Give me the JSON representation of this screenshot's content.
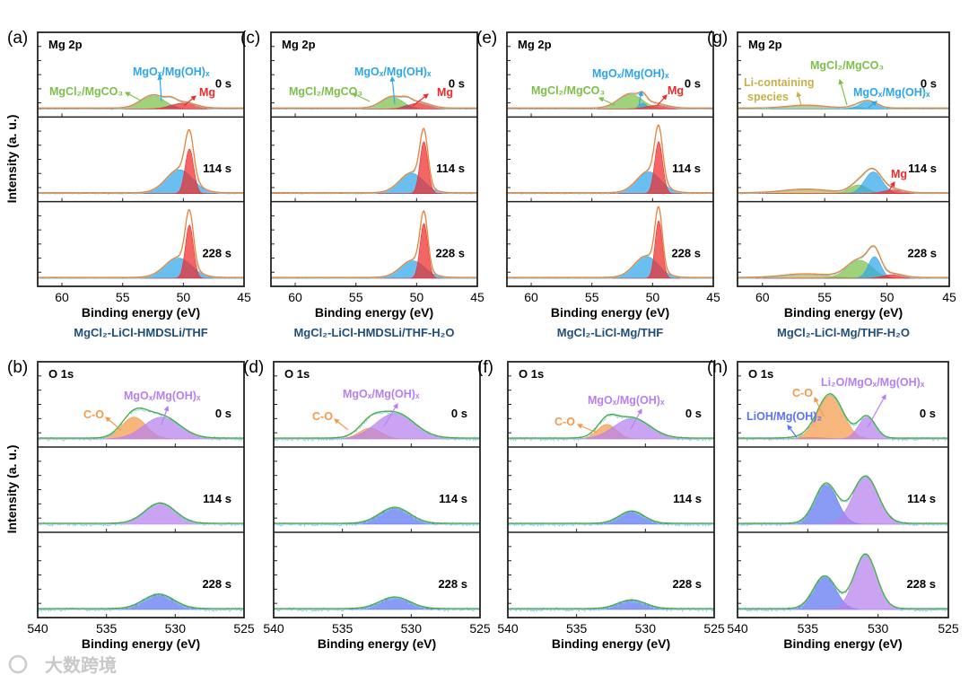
{
  "y_axis_label": "Intensity (a. u.)",
  "watermark": "大数跨境",
  "colors": {
    "green": "#7cc04a",
    "blue": "#2ea6ea",
    "red": "#ee2b2b",
    "olive": "#c8b04a",
    "orange": "#f39a4a",
    "purple": "#b681ef",
    "indigo": "#5c74f0",
    "mg_envelope": "#e8843a",
    "o_envelope": "#4caa3c",
    "raw": "#7fd3e8",
    "title": "#1f4e79"
  },
  "chart_data": [
    {
      "id": "a",
      "type": "area",
      "panel_label": "(a)",
      "region": "Mg 2p",
      "title": "MgCl₂-LiCl-HMDSLi/THF",
      "xlabel": "Binding energy (eV)",
      "xlim": [
        62,
        45
      ],
      "xticks": [
        60,
        55,
        50,
        45
      ],
      "envelope_color": "mg_envelope",
      "annotations": [
        {
          "text": "MgCl₂/MgCO₃",
          "color": "green"
        },
        {
          "text": "MgOₓ/Mg(OH)ₓ",
          "color": "blue"
        },
        {
          "text": "Mg",
          "color": "red"
        }
      ],
      "series": [
        {
          "time": "0 s",
          "components": [
            {
              "name": "MgCl₂/MgCO₃",
              "color": "green",
              "center": 52.5,
              "sigma": 1.0,
              "amp": 0.18
            },
            {
              "name": "MgOₓ/Mg(OH)ₓ",
              "color": "blue",
              "center": 51.0,
              "sigma": 0.4,
              "amp": 0.05
            },
            {
              "name": "Mg",
              "color": "red",
              "center": 50.0,
              "sigma": 1.0,
              "amp": 0.08
            }
          ]
        },
        {
          "time": "114 s",
          "components": [
            {
              "name": "MgOₓ/Mg(OH)ₓ",
              "color": "blue",
              "center": 50.3,
              "sigma": 1.1,
              "amp": 0.33
            },
            {
              "name": "Mg",
              "color": "red",
              "center": 49.5,
              "sigma": 0.35,
              "amp": 0.62
            }
          ]
        },
        {
          "time": "228 s",
          "components": [
            {
              "name": "MgOₓ/Mg(OH)ₓ",
              "color": "blue",
              "center": 50.4,
              "sigma": 1.1,
              "amp": 0.28
            },
            {
              "name": "Mg",
              "color": "red",
              "center": 49.5,
              "sigma": 0.33,
              "amp": 0.74
            }
          ]
        }
      ]
    },
    {
      "id": "c",
      "type": "area",
      "panel_label": "(c)",
      "region": "Mg 2p",
      "title": "MgCl₂-LiCl-HMDSLi/THF-H₂O",
      "xlabel": "Binding energy (eV)",
      "xlim": [
        62,
        45
      ],
      "xticks": [
        60,
        55,
        50,
        45
      ],
      "envelope_color": "mg_envelope",
      "annotations": [
        {
          "text": "MgCl₂/MgCO₃",
          "color": "green"
        },
        {
          "text": "MgOₓ/Mg(OH)ₓ",
          "color": "blue"
        },
        {
          "text": "Mg",
          "color": "red"
        }
      ],
      "series": [
        {
          "time": "0 s",
          "components": [
            {
              "name": "MgCl₂/MgCO₃",
              "color": "green",
              "center": 52.0,
              "sigma": 0.9,
              "amp": 0.16
            },
            {
              "name": "MgOₓ/Mg(OH)ₓ",
              "color": "blue",
              "center": 50.8,
              "sigma": 0.4,
              "amp": 0.05
            },
            {
              "name": "Mg",
              "color": "red",
              "center": 49.8,
              "sigma": 0.9,
              "amp": 0.08
            }
          ]
        },
        {
          "time": "114 s",
          "components": [
            {
              "name": "MgOₓ/Mg(OH)ₓ",
              "color": "blue",
              "center": 50.4,
              "sigma": 1.0,
              "amp": 0.28
            },
            {
              "name": "Mg",
              "color": "red",
              "center": 49.4,
              "sigma": 0.33,
              "amp": 0.72
            }
          ]
        },
        {
          "time": "228 s",
          "components": [
            {
              "name": "MgOₓ/Mg(OH)ₓ",
              "color": "blue",
              "center": 50.3,
              "sigma": 1.0,
              "amp": 0.24
            },
            {
              "name": "Mg",
              "color": "red",
              "center": 49.4,
              "sigma": 0.32,
              "amp": 0.76
            }
          ]
        }
      ]
    },
    {
      "id": "e",
      "type": "area",
      "panel_label": "(e)",
      "region": "Mg 2p",
      "title": "MgCl₂-LiCl-Mg/THF",
      "xlabel": "Binding energy (eV)",
      "xlim": [
        62,
        45
      ],
      "xticks": [
        60,
        55,
        50,
        45
      ],
      "envelope_color": "mg_envelope",
      "annotations": [
        {
          "text": "MgCl₂/MgCO₃",
          "color": "green"
        },
        {
          "text": "MgOₓ/Mg(OH)ₓ",
          "color": "blue"
        },
        {
          "text": "Mg",
          "color": "red"
        }
      ],
      "series": [
        {
          "time": "0 s",
          "components": [
            {
              "name": "MgCl₂/MgCO₃",
              "color": "green",
              "center": 51.8,
              "sigma": 1.0,
              "amp": 0.2
            },
            {
              "name": "MgOₓ/Mg(OH)ₓ",
              "color": "blue",
              "center": 50.8,
              "sigma": 0.3,
              "amp": 0.08
            },
            {
              "name": "Mg",
              "color": "red",
              "center": 49.6,
              "sigma": 0.9,
              "amp": 0.05
            }
          ]
        },
        {
          "time": "114 s",
          "components": [
            {
              "name": "MgOₓ/Mg(OH)ₓ",
              "color": "blue",
              "center": 50.3,
              "sigma": 1.0,
              "amp": 0.3
            },
            {
              "name": "Mg",
              "color": "red",
              "center": 49.5,
              "sigma": 0.33,
              "amp": 0.72
            }
          ]
        },
        {
          "time": "228 s",
          "components": [
            {
              "name": "MgOₓ/Mg(OH)ₓ",
              "color": "blue",
              "center": 50.5,
              "sigma": 1.0,
              "amp": 0.3
            },
            {
              "name": "Mg",
              "color": "red",
              "center": 49.5,
              "sigma": 0.3,
              "amp": 0.8
            }
          ]
        }
      ]
    },
    {
      "id": "g",
      "type": "area",
      "panel_label": "(g)",
      "region": "Mg 2p",
      "title": "MgCl₂-LiCl-Mg/THF-H₂O",
      "xlabel": "Binding energy (eV)",
      "xlim": [
        62,
        45
      ],
      "xticks": [
        60,
        55,
        50,
        45
      ],
      "envelope_color": "mg_envelope",
      "annotations": [
        {
          "text": "Li-containing",
          "color": "olive"
        },
        {
          "text": "species",
          "color": "olive"
        },
        {
          "text": "MgCl₂/MgCO₃",
          "color": "green"
        },
        {
          "text": "MgOₓ/Mg(OH)ₓ",
          "color": "blue"
        },
        {
          "text": "Mg",
          "color": "red"
        }
      ],
      "series": [
        {
          "time": "0 s",
          "components": [
            {
              "name": "Li-containing species",
              "color": "olive",
              "center": 56.5,
              "sigma": 1.5,
              "amp": 0.04
            },
            {
              "name": "MgCl₂/MgCO₃",
              "color": "green",
              "center": 52.5,
              "sigma": 0.6,
              "amp": 0.02
            },
            {
              "name": "MgOₓ/Mg(OH)ₓ",
              "color": "blue",
              "center": 51.5,
              "sigma": 0.7,
              "amp": 0.1
            }
          ]
        },
        {
          "time": "114 s",
          "components": [
            {
              "name": "Li-containing species",
              "color": "olive",
              "center": 56.5,
              "sigma": 1.8,
              "amp": 0.05
            },
            {
              "name": "MgCl₂/MgCO₃",
              "color": "green",
              "center": 52.3,
              "sigma": 0.7,
              "amp": 0.12
            },
            {
              "name": "MgOₓ/Mg(OH)ₓ",
              "color": "blue",
              "center": 51.1,
              "sigma": 0.7,
              "amp": 0.3
            },
            {
              "name": "Mg",
              "color": "red",
              "center": 49.5,
              "sigma": 0.8,
              "amp": 0.05
            }
          ]
        },
        {
          "time": "228 s",
          "components": [
            {
              "name": "Li-containing species",
              "color": "olive",
              "center": 56.5,
              "sigma": 1.8,
              "amp": 0.05
            },
            {
              "name": "MgCl₂/MgCO₃",
              "color": "green",
              "center": 52.2,
              "sigma": 1.0,
              "amp": 0.25
            },
            {
              "name": "MgOₓ/Mg(OH)ₓ",
              "color": "blue",
              "center": 51.0,
              "sigma": 0.5,
              "amp": 0.3
            },
            {
              "name": "Mg",
              "color": "red",
              "center": 49.5,
              "sigma": 0.8,
              "amp": 0.05
            }
          ]
        }
      ]
    },
    {
      "id": "b",
      "type": "area",
      "panel_label": "(b)",
      "region": "O 1s",
      "title": "",
      "xlabel": "Binding energy (eV)",
      "xlim": [
        540,
        525
      ],
      "xticks": [
        540,
        535,
        530,
        525
      ],
      "envelope_color": "o_envelope",
      "annotations": [
        {
          "text": "C-O",
          "color": "orange"
        },
        {
          "text": "MgOₓ/Mg(OH)ₓ",
          "color": "purple"
        }
      ],
      "series": [
        {
          "time": "0 s",
          "components": [
            {
              "name": "C-O",
              "color": "orange",
              "center": 533.0,
              "sigma": 0.9,
              "amp": 0.3
            },
            {
              "name": "MgOₓ/Mg(OH)ₓ",
              "color": "purple",
              "center": 531.0,
              "sigma": 1.3,
              "amp": 0.3
            }
          ]
        },
        {
          "time": "114 s",
          "components": [
            {
              "name": "MgOₓ/Mg(OH)ₓ",
              "color": "purple",
              "center": 531.1,
              "sigma": 1.1,
              "amp": 0.28
            }
          ]
        },
        {
          "time": "228 s",
          "components": [
            {
              "name": "MgOₓ/Mg(OH)ₓ",
              "color": "indigo",
              "center": 531.2,
              "sigma": 1.1,
              "amp": 0.2
            }
          ]
        }
      ]
    },
    {
      "id": "d",
      "type": "area",
      "panel_label": "(d)",
      "region": "O 1s",
      "title": "",
      "xlabel": "Binding energy (eV)",
      "xlim": [
        540,
        525
      ],
      "xticks": [
        540,
        535,
        530,
        525
      ],
      "envelope_color": "o_envelope",
      "annotations": [
        {
          "text": "C-O",
          "color": "orange"
        },
        {
          "text": "MgOₓ/Mg(OH)ₓ",
          "color": "purple"
        }
      ],
      "series": [
        {
          "time": "0 s",
          "components": [
            {
              "name": "C-O",
              "color": "orange",
              "center": 533.0,
              "sigma": 0.8,
              "amp": 0.15
            },
            {
              "name": "MgOₓ/Mg(OH)ₓ",
              "color": "purple",
              "center": 531.2,
              "sigma": 1.4,
              "amp": 0.35
            }
          ]
        },
        {
          "time": "114 s",
          "components": [
            {
              "name": "MgOₓ/Mg(OH)ₓ",
              "color": "indigo",
              "center": 531.2,
              "sigma": 1.1,
              "amp": 0.22
            }
          ]
        },
        {
          "time": "228 s",
          "components": [
            {
              "name": "MgOₓ/Mg(OH)ₓ",
              "color": "indigo",
              "center": 531.2,
              "sigma": 1.1,
              "amp": 0.16
            }
          ]
        }
      ]
    },
    {
      "id": "f",
      "type": "area",
      "panel_label": "(f)",
      "region": "O 1s",
      "title": "",
      "xlabel": "Binding energy (eV)",
      "xlim": [
        540,
        525
      ],
      "xticks": [
        540,
        535,
        530,
        525
      ],
      "envelope_color": "o_envelope",
      "annotations": [
        {
          "text": "C-O",
          "color": "orange"
        },
        {
          "text": "MgOₓ/Mg(OH)ₓ",
          "color": "purple"
        }
      ],
      "series": [
        {
          "time": "0 s",
          "components": [
            {
              "name": "C-O",
              "color": "orange",
              "center": 532.8,
              "sigma": 0.7,
              "amp": 0.2
            },
            {
              "name": "MgOₓ/Mg(OH)ₓ",
              "color": "purple",
              "center": 531.0,
              "sigma": 1.3,
              "amp": 0.28
            }
          ]
        },
        {
          "time": "114 s",
          "components": [
            {
              "name": "MgOₓ/Mg(OH)ₓ",
              "color": "indigo",
              "center": 531.0,
              "sigma": 0.9,
              "amp": 0.17
            }
          ]
        },
        {
          "time": "228 s",
          "components": [
            {
              "name": "MgOₓ/Mg(OH)ₓ",
              "color": "indigo",
              "center": 531.0,
              "sigma": 1.0,
              "amp": 0.12
            }
          ]
        }
      ]
    },
    {
      "id": "h",
      "type": "area",
      "panel_label": "(h)",
      "region": "O 1s",
      "title": "",
      "xlabel": "Binding energy (eV)",
      "xlim": [
        540,
        525
      ],
      "xticks": [
        540,
        535,
        530,
        525
      ],
      "envelope_color": "o_envelope",
      "annotations": [
        {
          "text": "C-O",
          "color": "orange"
        },
        {
          "text": "Li₂O/MgOₓ/Mg(OH)ₓ",
          "color": "purple"
        },
        {
          "text": "LiOH/Mg(OH)₂",
          "color": "indigo"
        }
      ],
      "series": [
        {
          "time": "0 s",
          "components": [
            {
              "name": "LiOH/Mg(OH)₂",
              "color": "indigo",
              "center": 534.8,
              "sigma": 1.0,
              "amp": 0.02
            },
            {
              "name": "C-O",
              "color": "orange",
              "center": 533.4,
              "sigma": 0.9,
              "amp": 0.6
            },
            {
              "name": "Li₂O/MgOₓ/Mg(OH)ₓ",
              "color": "purple",
              "center": 530.8,
              "sigma": 0.6,
              "amp": 0.3
            }
          ]
        },
        {
          "time": "114 s",
          "components": [
            {
              "name": "LiOH/Mg(OH)₂",
              "color": "indigo",
              "center": 533.7,
              "sigma": 0.8,
              "amp": 0.55
            },
            {
              "name": "Li₂O/MgOₓ/Mg(OH)ₓ",
              "color": "purple",
              "center": 530.9,
              "sigma": 0.9,
              "amp": 0.65
            }
          ]
        },
        {
          "time": "228 s",
          "components": [
            {
              "name": "LiOH/Mg(OH)₂",
              "color": "indigo",
              "center": 533.8,
              "sigma": 0.8,
              "amp": 0.45
            },
            {
              "name": "Li₂O/MgOₓ/Mg(OH)ₓ",
              "color": "purple",
              "center": 530.9,
              "sigma": 0.8,
              "amp": 0.75
            }
          ]
        }
      ]
    }
  ]
}
